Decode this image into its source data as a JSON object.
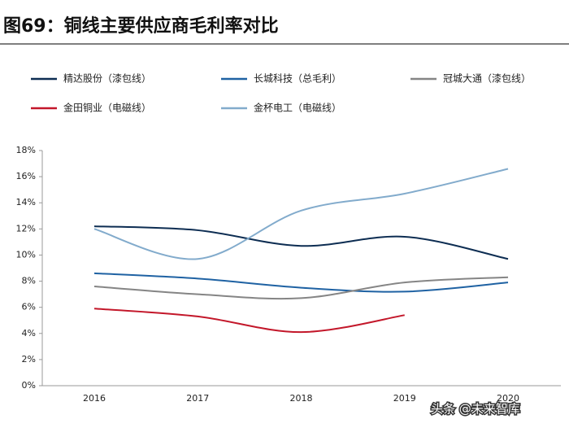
{
  "chart_data": {
    "type": "line",
    "title": "图69：铜线主要供应商毛利率对比",
    "categories": [
      "2016",
      "2017",
      "2018",
      "2019",
      "2020"
    ],
    "series": [
      {
        "name": "精达股份（漆包线）",
        "color": "#0d2d52",
        "values": [
          12.2,
          11.9,
          10.7,
          11.4,
          9.7
        ]
      },
      {
        "name": "长城科技（总毛利）",
        "color": "#1f62a3",
        "values": [
          8.6,
          8.2,
          7.5,
          7.2,
          7.9
        ]
      },
      {
        "name": "冠城大通（漆包线）",
        "color": "#858585",
        "values": [
          7.6,
          7.0,
          6.7,
          7.9,
          8.3
        ]
      },
      {
        "name": "金田铜业（电磁线）",
        "color": "#c3172a",
        "values": [
          5.9,
          5.3,
          4.1,
          5.4,
          null
        ]
      },
      {
        "name": "金杯电工（电磁线）",
        "color": "#82abcc",
        "values": [
          12.0,
          9.7,
          13.4,
          14.7,
          16.6
        ]
      }
    ],
    "ylim": [
      0,
      18
    ],
    "yticks": [
      {
        "value": 0,
        "label": "0%"
      },
      {
        "value": 2,
        "label": "2%"
      },
      {
        "value": 4,
        "label": "4%"
      },
      {
        "value": 6,
        "label": "6%"
      },
      {
        "value": 8,
        "label": "8%"
      },
      {
        "value": 10,
        "label": "10%"
      },
      {
        "value": 12,
        "label": "12%"
      },
      {
        "value": 14,
        "label": "14%"
      },
      {
        "value": 16,
        "label": "16%"
      },
      {
        "value": 18,
        "label": "18%"
      }
    ],
    "watermark": "头条 @未来智库"
  }
}
